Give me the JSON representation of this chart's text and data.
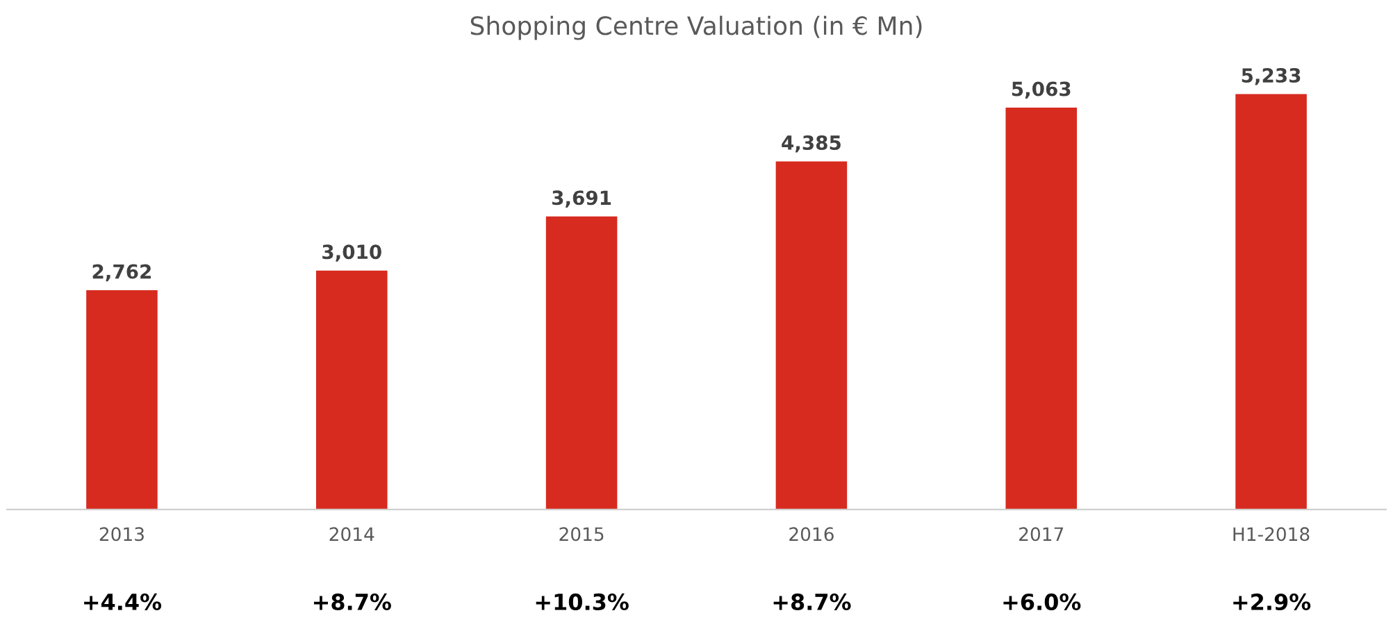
{
  "chart_data": {
    "type": "bar",
    "title": "Shopping Centre Valuation (in € Mn)",
    "categories": [
      "2013",
      "2014",
      "2015",
      "2016",
      "2017",
      "H1-2018"
    ],
    "values": [
      2762,
      3010,
      3691,
      4385,
      5063,
      5233
    ],
    "value_labels": [
      "2,762",
      "3,010",
      "3,691",
      "4,385",
      "5,063",
      "5,233"
    ],
    "color": "#d72b20",
    "annotations": [
      "+4.4%",
      "+8.7%",
      "+10.3%",
      "+8.7%",
      "+6.0%",
      "+2.9%"
    ]
  }
}
